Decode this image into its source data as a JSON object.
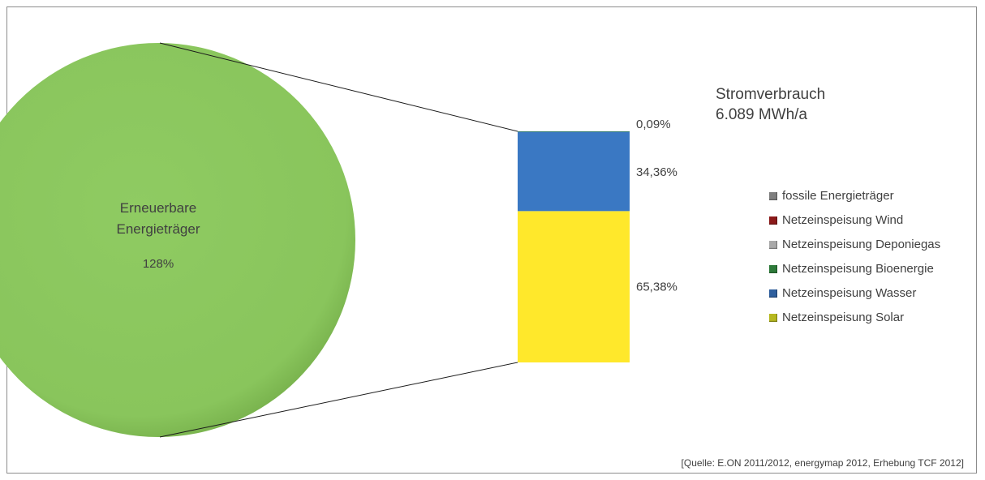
{
  "chart_data": {
    "type": "bar-of-pie",
    "pie": {
      "slices": [
        {
          "label_line1": "Erneuerbare",
          "label_line2": "Energieträger",
          "value_label": "128%",
          "color": "#8ac65e"
        }
      ]
    },
    "bar": {
      "segments": [
        {
          "name": "Netzeinspeisung Solar",
          "value": 65.38,
          "label": "65,38%",
          "color": "#ffe82b"
        },
        {
          "name": "Netzeinspeisung Wasser",
          "value": 34.36,
          "label": "34,36%",
          "color": "#3a78c3"
        },
        {
          "name": "Netzeinspeisung Bioenergie",
          "value": 0.09,
          "label": "0,09%",
          "color": "#2e7a3a"
        }
      ]
    },
    "title": {
      "line1": "Stromverbrauch",
      "line2": "6.089 MWh/a"
    },
    "legend": {
      "placement": "right",
      "entries": [
        {
          "label": "fossile Energieträger",
          "color": "#7f7f7f"
        },
        {
          "label": "Netzeinspeisung Wind",
          "color": "#8b1a1a"
        },
        {
          "label": "Netzeinspeisung Deponiegas",
          "color": "#a9a9a9"
        },
        {
          "label": "Netzeinspeisung Bioenergie",
          "color": "#2e7a3a"
        },
        {
          "label": "Netzeinspeisung Wasser",
          "color": "#2f5f9e"
        },
        {
          "label": "Netzeinspeisung Solar",
          "color": "#b6b820"
        }
      ]
    },
    "source": "[Quelle: E.ON 2011/2012, energymap 2012, Erhebung TCF 2012]"
  }
}
